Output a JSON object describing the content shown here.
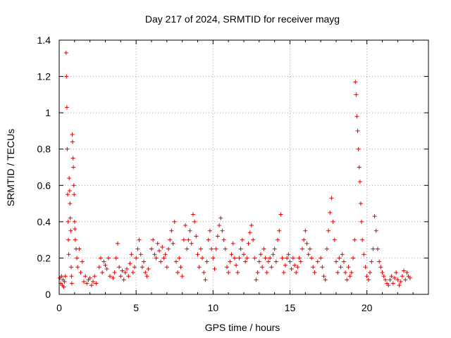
{
  "chart_data": {
    "type": "scatter",
    "title": "Day 217 of 2024, SRMTID for receiver mayg",
    "xlabel": "GPS time / hours",
    "ylabel": "SRMTID / TECUs",
    "xlim": [
      0,
      24
    ],
    "ylim": [
      0,
      1.4
    ],
    "xticks": [
      0,
      5,
      10,
      15,
      20
    ],
    "yticks": [
      0,
      0.2,
      0.4,
      0.6,
      0.8,
      1.0,
      1.2,
      1.4
    ],
    "xtick_labels": [
      "0",
      "5",
      "10",
      "15",
      "20"
    ],
    "ytick_labels": [
      "0",
      "0.2",
      "0.4",
      "0.6",
      "0.8",
      "1",
      "1.2",
      "1.4"
    ],
    "grid": true,
    "marker": "+",
    "series": [
      {
        "name": "SRMTID",
        "color": "#e00000",
        "points": [
          [
            0.05,
            0.09
          ],
          [
            0.1,
            0.06
          ],
          [
            0.15,
            0.1
          ],
          [
            0.2,
            0.05
          ],
          [
            0.25,
            0.08
          ],
          [
            0.3,
            0.04
          ],
          [
            0.35,
            0.07
          ],
          [
            0.4,
            0.1
          ],
          [
            0.45,
            1.33
          ],
          [
            0.47,
            1.2
          ],
          [
            0.5,
            1.03
          ],
          [
            0.52,
            0.8
          ],
          [
            0.55,
            0.55
          ],
          [
            0.58,
            0.4
          ],
          [
            0.6,
            0.3
          ],
          [
            0.62,
            0.22
          ],
          [
            0.65,
            0.64
          ],
          [
            0.68,
            0.57
          ],
          [
            0.7,
            0.5
          ],
          [
            0.72,
            0.42
          ],
          [
            0.75,
            0.35
          ],
          [
            0.78,
            0.15
          ],
          [
            0.8,
            0.1
          ],
          [
            0.82,
            0.06
          ],
          [
            0.85,
            0.88
          ],
          [
            0.87,
            0.84
          ],
          [
            0.9,
            0.75
          ],
          [
            0.92,
            0.7
          ],
          [
            0.95,
            0.6
          ],
          [
            0.97,
            0.55
          ],
          [
            1.0,
            0.4
          ],
          [
            1.02,
            0.36
          ],
          [
            1.05,
            0.3
          ],
          [
            1.1,
            0.25
          ],
          [
            1.15,
            0.2
          ],
          [
            1.2,
            0.15
          ],
          [
            1.3,
            0.25
          ],
          [
            1.4,
            0.12
          ],
          [
            1.5,
            0.18
          ],
          [
            1.6,
            0.07
          ],
          [
            1.7,
            0.1
          ],
          [
            1.8,
            0.06
          ],
          [
            1.9,
            0.08
          ],
          [
            2.0,
            0.09
          ],
          [
            2.1,
            0.05
          ],
          [
            2.2,
            0.07
          ],
          [
            2.3,
            0.1
          ],
          [
            2.4,
            0.06
          ],
          [
            2.6,
            0.15
          ],
          [
            2.7,
            0.2
          ],
          [
            2.8,
            0.12
          ],
          [
            2.9,
            0.18
          ],
          [
            3.0,
            0.16
          ],
          [
            3.1,
            0.14
          ],
          [
            3.2,
            0.2
          ],
          [
            3.3,
            0.1
          ],
          [
            3.5,
            0.09
          ],
          [
            3.6,
            0.12
          ],
          [
            3.7,
            0.2
          ],
          [
            3.8,
            0.28
          ],
          [
            3.9,
            0.15
          ],
          [
            4.0,
            0.1
          ],
          [
            4.1,
            0.13
          ],
          [
            4.2,
            0.08
          ],
          [
            4.3,
            0.12
          ],
          [
            4.4,
            0.14
          ],
          [
            4.5,
            0.1
          ],
          [
            4.6,
            0.17
          ],
          [
            4.7,
            0.22
          ],
          [
            4.8,
            0.12
          ],
          [
            4.9,
            0.15
          ],
          [
            5.0,
            0.2
          ],
          [
            5.1,
            0.25
          ],
          [
            5.2,
            0.3
          ],
          [
            5.3,
            0.22
          ],
          [
            5.4,
            0.15
          ],
          [
            5.5,
            0.18
          ],
          [
            5.6,
            0.12
          ],
          [
            5.7,
            0.1
          ],
          [
            5.8,
            0.14
          ],
          [
            6.0,
            0.25
          ],
          [
            6.1,
            0.3
          ],
          [
            6.2,
            0.22
          ],
          [
            6.3,
            0.2
          ],
          [
            6.4,
            0.28
          ],
          [
            6.5,
            0.24
          ],
          [
            6.6,
            0.18
          ],
          [
            6.7,
            0.26
          ],
          [
            6.8,
            0.2
          ],
          [
            6.9,
            0.22
          ],
          [
            7.0,
            0.15
          ],
          [
            7.1,
            0.25
          ],
          [
            7.2,
            0.3
          ],
          [
            7.3,
            0.35
          ],
          [
            7.4,
            0.28
          ],
          [
            7.5,
            0.4
          ],
          [
            7.6,
            0.18
          ],
          [
            7.7,
            0.12
          ],
          [
            7.8,
            0.2
          ],
          [
            7.9,
            0.15
          ],
          [
            8.0,
            0.1
          ],
          [
            8.1,
            0.3
          ],
          [
            8.2,
            0.38
          ],
          [
            8.3,
            0.25
          ],
          [
            8.4,
            0.3
          ],
          [
            8.5,
            0.35
          ],
          [
            8.6,
            0.28
          ],
          [
            8.7,
            0.44
          ],
          [
            8.8,
            0.4
          ],
          [
            8.9,
            0.32
          ],
          [
            9.0,
            0.22
          ],
          [
            9.1,
            0.15
          ],
          [
            9.2,
            0.25
          ],
          [
            9.3,
            0.2
          ],
          [
            9.4,
            0.12
          ],
          [
            9.5,
            0.08
          ],
          [
            9.6,
            0.18
          ],
          [
            9.7,
            0.3
          ],
          [
            9.8,
            0.35
          ],
          [
            9.9,
            0.25
          ],
          [
            10.0,
            0.2
          ],
          [
            10.1,
            0.14
          ],
          [
            10.2,
            0.25
          ],
          [
            10.3,
            0.32
          ],
          [
            10.4,
            0.38
          ],
          [
            10.5,
            0.42
          ],
          [
            10.6,
            0.35
          ],
          [
            10.7,
            0.3
          ],
          [
            10.8,
            0.25
          ],
          [
            10.9,
            0.15
          ],
          [
            11.0,
            0.12
          ],
          [
            11.1,
            0.18
          ],
          [
            11.2,
            0.22
          ],
          [
            11.3,
            0.28
          ],
          [
            11.4,
            0.2
          ],
          [
            11.5,
            0.16
          ],
          [
            11.6,
            0.12
          ],
          [
            11.7,
            0.2
          ],
          [
            11.8,
            0.25
          ],
          [
            11.9,
            0.3
          ],
          [
            12.0,
            0.22
          ],
          [
            12.1,
            0.18
          ],
          [
            12.2,
            0.2
          ],
          [
            12.3,
            0.28
          ],
          [
            12.4,
            0.34
          ],
          [
            12.5,
            0.38
          ],
          [
            12.6,
            0.3
          ],
          [
            12.7,
            0.2
          ],
          [
            12.8,
            0.08
          ],
          [
            12.9,
            0.12
          ],
          [
            13.0,
            0.18
          ],
          [
            13.1,
            0.22
          ],
          [
            13.2,
            0.15
          ],
          [
            13.3,
            0.25
          ],
          [
            13.4,
            0.2
          ],
          [
            13.5,
            0.12
          ],
          [
            13.6,
            0.18
          ],
          [
            13.7,
            0.2
          ],
          [
            13.8,
            0.15
          ],
          [
            13.9,
            0.22
          ],
          [
            14.0,
            0.25
          ],
          [
            14.1,
            0.18
          ],
          [
            14.2,
            0.3
          ],
          [
            14.3,
            0.35
          ],
          [
            14.4,
            0.44
          ],
          [
            14.5,
            0.2
          ],
          [
            14.6,
            0.12
          ],
          [
            14.7,
            0.16
          ],
          [
            14.8,
            0.2
          ],
          [
            14.9,
            0.22
          ],
          [
            15.0,
            0.18
          ],
          [
            15.1,
            0.14
          ],
          [
            15.2,
            0.2
          ],
          [
            15.3,
            0.16
          ],
          [
            15.4,
            0.12
          ],
          [
            15.5,
            0.15
          ],
          [
            15.6,
            0.2
          ],
          [
            15.7,
            0.18
          ],
          [
            15.8,
            0.25
          ],
          [
            15.9,
            0.3
          ],
          [
            16.0,
            0.35
          ],
          [
            16.1,
            0.28
          ],
          [
            16.2,
            0.22
          ],
          [
            16.3,
            0.25
          ],
          [
            16.4,
            0.2
          ],
          [
            16.5,
            0.15
          ],
          [
            16.6,
            0.12
          ],
          [
            16.8,
            0.18
          ],
          [
            17.0,
            0.2
          ],
          [
            17.1,
            0.15
          ],
          [
            17.2,
            0.1
          ],
          [
            17.3,
            0.08
          ],
          [
            17.4,
            0.25
          ],
          [
            17.5,
            0.35
          ],
          [
            17.6,
            0.45
          ],
          [
            17.7,
            0.53
          ],
          [
            17.8,
            0.4
          ],
          [
            17.9,
            0.3
          ],
          [
            18.0,
            0.18
          ],
          [
            18.1,
            0.12
          ],
          [
            18.2,
            0.2
          ],
          [
            18.3,
            0.15
          ],
          [
            18.4,
            0.22
          ],
          [
            18.5,
            0.18
          ],
          [
            18.6,
            0.12
          ],
          [
            18.7,
            0.08
          ],
          [
            18.8,
            0.15
          ],
          [
            18.9,
            0.1
          ],
          [
            19.0,
            0.12
          ],
          [
            19.1,
            0.2
          ],
          [
            19.2,
            0.3
          ],
          [
            19.25,
            1.17
          ],
          [
            19.3,
            1.1
          ],
          [
            19.35,
            0.98
          ],
          [
            19.4,
            0.9
          ],
          [
            19.45,
            0.8
          ],
          [
            19.5,
            0.7
          ],
          [
            19.55,
            0.62
          ],
          [
            19.6,
            0.5
          ],
          [
            19.65,
            0.4
          ],
          [
            19.7,
            0.3
          ],
          [
            19.8,
            0.22
          ],
          [
            19.9,
            0.15
          ],
          [
            20.0,
            0.1
          ],
          [
            20.1,
            0.08
          ],
          [
            20.2,
            0.12
          ],
          [
            20.3,
            0.18
          ],
          [
            20.4,
            0.25
          ],
          [
            20.5,
            0.43
          ],
          [
            20.6,
            0.35
          ],
          [
            20.7,
            0.25
          ],
          [
            20.8,
            0.18
          ],
          [
            20.9,
            0.15
          ],
          [
            21.0,
            0.12
          ],
          [
            21.1,
            0.1
          ],
          [
            21.2,
            0.08
          ],
          [
            21.3,
            0.06
          ],
          [
            21.4,
            0.05
          ],
          [
            21.5,
            0.08
          ],
          [
            21.6,
            0.1
          ],
          [
            21.7,
            0.06
          ],
          [
            21.8,
            0.09
          ],
          [
            21.9,
            0.12
          ],
          [
            22.0,
            0.08
          ],
          [
            22.1,
            0.05
          ],
          [
            22.2,
            0.07
          ],
          [
            22.3,
            0.1
          ],
          [
            22.4,
            0.13
          ],
          [
            22.5,
            0.08
          ],
          [
            22.6,
            0.12
          ],
          [
            22.7,
            0.1
          ],
          [
            22.8,
            0.09
          ]
        ]
      }
    ]
  }
}
